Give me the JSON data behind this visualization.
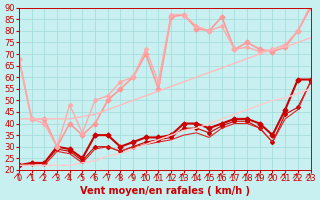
{
  "xlabel": "Vent moyen/en rafales ( km/h )",
  "ylabel": "",
  "bg_color": "#c8f0f0",
  "grid_color": "#a0d8d8",
  "ylim": [
    20,
    90
  ],
  "xlim": [
    0,
    23
  ],
  "yticks": [
    20,
    25,
    30,
    35,
    40,
    45,
    50,
    55,
    60,
    65,
    70,
    75,
    80,
    85,
    90
  ],
  "xticks": [
    0,
    1,
    2,
    3,
    4,
    5,
    6,
    7,
    8,
    9,
    10,
    11,
    12,
    13,
    14,
    15,
    16,
    17,
    18,
    19,
    20,
    21,
    22,
    23
  ],
  "series": [
    {
      "x": [
        0,
        1,
        2,
        3,
        4,
        5,
        6,
        7,
        8,
        9,
        10,
        11,
        12,
        13,
        14,
        15,
        16,
        17,
        18,
        19,
        20,
        21,
        22,
        23
      ],
      "y": [
        22,
        23,
        23,
        30,
        29,
        25,
        35,
        35,
        30,
        32,
        34,
        34,
        35,
        40,
        40,
        38,
        40,
        42,
        42,
        40,
        35,
        46,
        59,
        59
      ],
      "color": "#cc0000",
      "lw": 1.5,
      "marker": "D",
      "ms": 2.5
    },
    {
      "x": [
        0,
        1,
        2,
        3,
        4,
        5,
        6,
        7,
        8,
        9,
        10,
        11,
        12,
        13,
        14,
        15,
        16,
        17,
        18,
        19,
        20,
        21,
        22,
        23
      ],
      "y": [
        22,
        23,
        23,
        29,
        28,
        24,
        30,
        30,
        28,
        30,
        32,
        33,
        34,
        38,
        38,
        36,
        39,
        41,
        41,
        38,
        32,
        44,
        47,
        58
      ],
      "color": "#cc0000",
      "lw": 0.8,
      "marker": "D",
      "ms": 2.0
    },
    {
      "x": [
        0,
        1,
        2,
        3,
        4,
        5,
        6,
        7,
        8,
        9,
        10,
        11,
        12,
        13,
        14,
        15,
        16,
        17,
        18,
        19,
        20,
        21,
        22,
        23
      ],
      "y": [
        22,
        22,
        22,
        28,
        27,
        23,
        29,
        30,
        28,
        30,
        31,
        32,
        33,
        35,
        36,
        34,
        38,
        40,
        40,
        38,
        32,
        42,
        46,
        58
      ],
      "color": "#dd2222",
      "lw": 0.8,
      "marker": null,
      "ms": 0
    },
    {
      "x": [
        0,
        1,
        2,
        3,
        4,
        5,
        6,
        7,
        8,
        9,
        10,
        11,
        12,
        13,
        14,
        15,
        16,
        17,
        18,
        19,
        20,
        21,
        22,
        23
      ],
      "y": [
        68,
        42,
        42,
        30,
        40,
        35,
        40,
        50,
        55,
        60,
        70,
        55,
        86,
        87,
        81,
        80,
        86,
        72,
        75,
        72,
        71,
        73,
        80,
        90
      ],
      "color": "#ff9999",
      "lw": 1.2,
      "marker": "D",
      "ms": 2.5
    },
    {
      "x": [
        0,
        1,
        2,
        3,
        4,
        5,
        6,
        7,
        8,
        9,
        10,
        11,
        12,
        13,
        14,
        15,
        16,
        17,
        18,
        19,
        20,
        21,
        22,
        23
      ],
      "y": [
        68,
        42,
        40,
        30,
        48,
        36,
        50,
        52,
        58,
        60,
        72,
        58,
        87,
        87,
        82,
        80,
        82,
        72,
        73,
        71,
        72,
        74,
        80,
        91
      ],
      "color": "#ffaaaa",
      "lw": 1.0,
      "marker": "D",
      "ms": 2.0
    },
    {
      "x": [
        0,
        1,
        2,
        3,
        4,
        5,
        6,
        7,
        8,
        9,
        10,
        11,
        12,
        13,
        14,
        15,
        16,
        17,
        18,
        19,
        20,
        21,
        22,
        23
      ],
      "y": [
        42,
        42,
        42,
        42,
        42,
        43,
        44,
        46,
        48,
        50,
        52,
        54,
        56,
        58,
        60,
        62,
        64,
        66,
        68,
        70,
        72,
        73,
        75,
        77
      ],
      "color": "#ffbbbb",
      "lw": 1.0,
      "marker": null,
      "ms": 0
    },
    {
      "x": [
        0,
        1,
        2,
        3,
        4,
        5,
        6,
        7,
        8,
        9,
        10,
        11,
        12,
        13,
        14,
        15,
        16,
        17,
        18,
        19,
        20,
        21,
        22,
        23
      ],
      "y": [
        22,
        22,
        22,
        22,
        22,
        23,
        24,
        26,
        27,
        29,
        31,
        33,
        35,
        37,
        38,
        40,
        42,
        44,
        46,
        48,
        50,
        51,
        53,
        55
      ],
      "color": "#ffcccc",
      "lw": 1.0,
      "marker": null,
      "ms": 0
    }
  ],
  "arrow_color": "#cc0000",
  "xlabel_color": "#cc0000",
  "tick_color": "#cc0000",
  "title_color": "#000000",
  "xlabel_fontsize": 7,
  "ylabel_fontsize": 7,
  "tick_fontsize": 6
}
